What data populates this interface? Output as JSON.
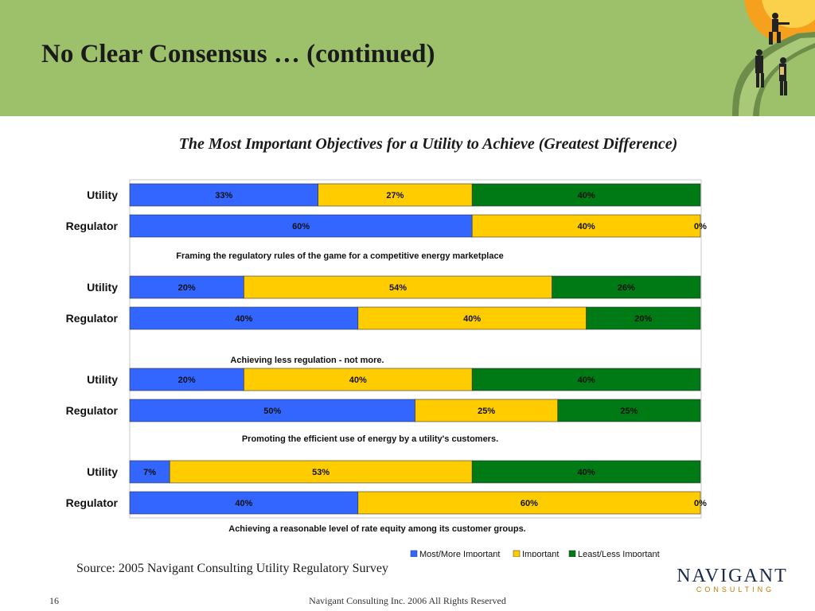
{
  "slide": {
    "title": "No Clear Consensus … (continued)",
    "source": "Source: 2005 Navigant Consulting Utility Regulatory Survey",
    "page_number": "16",
    "copyright": "Navigant Consulting Inc. 2006 All Rights Reserved",
    "logo": {
      "word": "NAVIGANT",
      "sub": "CONSULTING"
    }
  },
  "colors": {
    "header_band": "#9cc16a",
    "most_important": "#3366ff",
    "important": "#ffcc00",
    "least_important": "#007a14"
  },
  "chart_data": {
    "type": "bar",
    "orientation": "horizontal",
    "stacked": true,
    "percent_scale": true,
    "title": "The Most Important Objectives for a Utility to Achieve (Greatest Difference)",
    "xlim": [
      0,
      100
    ],
    "legend_position": "bottom-right",
    "series": [
      {
        "name": "Most/More Important",
        "color": "#3366ff"
      },
      {
        "name": "Important",
        "color": "#ffcc00"
      },
      {
        "name": "Least/Less Important",
        "color": "#007a14"
      }
    ],
    "groups": [
      {
        "label": "Framing the regulatory rules of the game for a competitive energy marketplace",
        "rows": [
          {
            "category": "Utility",
            "values": [
              33,
              27,
              40
            ],
            "labels": [
              "33%",
              "27%",
              "40%"
            ]
          },
          {
            "category": "Regulator",
            "values": [
              60,
              40,
              0
            ],
            "labels": [
              "60%",
              "40%",
              "0%"
            ]
          }
        ]
      },
      {
        "label": "Achieving less regulation - not more.",
        "rows": [
          {
            "category": "Utility",
            "values": [
              20,
              54,
              26
            ],
            "labels": [
              "20%",
              "54%",
              "26%"
            ]
          },
          {
            "category": "Regulator",
            "values": [
              40,
              40,
              20
            ],
            "labels": [
              "40%",
              "40%",
              "20%"
            ]
          }
        ]
      },
      {
        "label": "Promoting the efficient use of energy by a utility's customers.",
        "rows": [
          {
            "category": "Utility",
            "values": [
              20,
              40,
              40
            ],
            "labels": [
              "20%",
              "40%",
              "40%"
            ]
          },
          {
            "category": "Regulator",
            "values": [
              50,
              25,
              25
            ],
            "labels": [
              "50%",
              "25%",
              "25%"
            ]
          }
        ]
      },
      {
        "label": "Achieving a reasonable level of rate equity among its customer groups.",
        "rows": [
          {
            "category": "Utility",
            "values": [
              7,
              53,
              40
            ],
            "labels": [
              "7%",
              "53%",
              "40%"
            ]
          },
          {
            "category": "Regulator",
            "values": [
              40,
              60,
              0
            ],
            "labels": [
              "40%",
              "60%",
              "0%"
            ]
          }
        ]
      }
    ]
  }
}
